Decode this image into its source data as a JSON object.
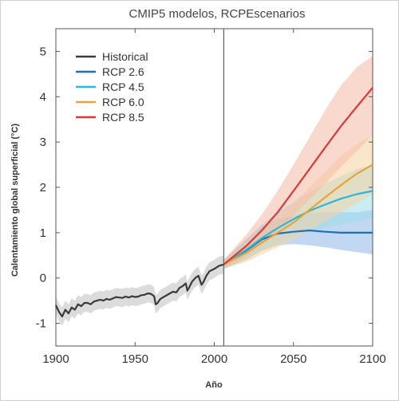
{
  "chart_data": {
    "type": "line",
    "title": "CMIP5 modelos, RCPEscenarios",
    "xlabel": "Año",
    "ylabel": "Calentamiento global superficial (°C)",
    "xlim": [
      1900,
      2100
    ],
    "ylim": [
      -1.5,
      5.5
    ],
    "x_ticks": [
      1900,
      1950,
      2000,
      2050,
      2100
    ],
    "y_ticks": [
      -1,
      0,
      1,
      2,
      3,
      4,
      5
    ],
    "divider_x": 2006,
    "legend_position": "top-left",
    "series": [
      {
        "name": "Historical",
        "color": "#3a3a3a",
        "band_color": "#bfbfbf",
        "points": [
          [
            1900,
            -0.6
          ],
          [
            1902,
            -0.75
          ],
          [
            1904,
            -0.85
          ],
          [
            1906,
            -0.7
          ],
          [
            1908,
            -0.78
          ],
          [
            1910,
            -0.65
          ],
          [
            1912,
            -0.7
          ],
          [
            1914,
            -0.58
          ],
          [
            1916,
            -0.62
          ],
          [
            1918,
            -0.55
          ],
          [
            1920,
            -0.55
          ],
          [
            1922,
            -0.58
          ],
          [
            1924,
            -0.52
          ],
          [
            1926,
            -0.5
          ],
          [
            1928,
            -0.48
          ],
          [
            1930,
            -0.5
          ],
          [
            1932,
            -0.46
          ],
          [
            1934,
            -0.48
          ],
          [
            1936,
            -0.45
          ],
          [
            1938,
            -0.42
          ],
          [
            1940,
            -0.43
          ],
          [
            1942,
            -0.44
          ],
          [
            1944,
            -0.41
          ],
          [
            1946,
            -0.43
          ],
          [
            1948,
            -0.4
          ],
          [
            1950,
            -0.42
          ],
          [
            1952,
            -0.41
          ],
          [
            1954,
            -0.38
          ],
          [
            1956,
            -0.37
          ],
          [
            1958,
            -0.34
          ],
          [
            1960,
            -0.35
          ],
          [
            1962,
            -0.4
          ],
          [
            1963,
            -0.58
          ],
          [
            1964,
            -0.56
          ],
          [
            1966,
            -0.46
          ],
          [
            1968,
            -0.42
          ],
          [
            1970,
            -0.38
          ],
          [
            1972,
            -0.34
          ],
          [
            1974,
            -0.3
          ],
          [
            1976,
            -0.32
          ],
          [
            1978,
            -0.22
          ],
          [
            1980,
            -0.18
          ],
          [
            1982,
            -0.12
          ],
          [
            1983,
            -0.28
          ],
          [
            1984,
            -0.22
          ],
          [
            1986,
            -0.08
          ],
          [
            1988,
            0.0
          ],
          [
            1990,
            0.05
          ],
          [
            1991,
            -0.05
          ],
          [
            1992,
            -0.15
          ],
          [
            1993,
            -0.1
          ],
          [
            1995,
            0.05
          ],
          [
            1997,
            0.15
          ],
          [
            2000,
            0.2
          ],
          [
            2003,
            0.27
          ],
          [
            2006,
            0.3
          ]
        ],
        "band_half_width": 0.2
      },
      {
        "name": "RCP 2.6",
        "color": "#1f6fbf",
        "band_color": "#8fb6e8",
        "points": [
          [
            2006,
            0.3
          ],
          [
            2020,
            0.6
          ],
          [
            2030,
            0.85
          ],
          [
            2040,
            0.98
          ],
          [
            2050,
            1.02
          ],
          [
            2060,
            1.05
          ],
          [
            2070,
            1.02
          ],
          [
            2080,
            1.0
          ],
          [
            2090,
            1.0
          ],
          [
            2100,
            1.0
          ]
        ],
        "band_upper": [
          [
            2006,
            0.4
          ],
          [
            2020,
            0.85
          ],
          [
            2030,
            1.15
          ],
          [
            2040,
            1.3
          ],
          [
            2050,
            1.38
          ],
          [
            2060,
            1.45
          ],
          [
            2070,
            1.45
          ],
          [
            2080,
            1.45
          ],
          [
            2090,
            1.45
          ],
          [
            2100,
            1.5
          ]
        ],
        "band_lower": [
          [
            2006,
            0.2
          ],
          [
            2020,
            0.4
          ],
          [
            2030,
            0.6
          ],
          [
            2040,
            0.72
          ],
          [
            2050,
            0.75
          ],
          [
            2060,
            0.72
          ],
          [
            2070,
            0.68
          ],
          [
            2080,
            0.62
          ],
          [
            2090,
            0.57
          ],
          [
            2100,
            0.52
          ]
        ]
      },
      {
        "name": "RCP 4.5",
        "color": "#2bb7d6",
        "band_color": "#9fdcea",
        "points": [
          [
            2006,
            0.3
          ],
          [
            2020,
            0.62
          ],
          [
            2030,
            0.88
          ],
          [
            2040,
            1.1
          ],
          [
            2050,
            1.3
          ],
          [
            2060,
            1.48
          ],
          [
            2070,
            1.62
          ],
          [
            2080,
            1.75
          ],
          [
            2090,
            1.85
          ],
          [
            2100,
            1.92
          ]
        ],
        "band_upper": [
          [
            2006,
            0.4
          ],
          [
            2020,
            0.85
          ],
          [
            2030,
            1.18
          ],
          [
            2040,
            1.45
          ],
          [
            2050,
            1.68
          ],
          [
            2060,
            1.9
          ],
          [
            2070,
            2.08
          ],
          [
            2080,
            2.25
          ],
          [
            2090,
            2.4
          ],
          [
            2100,
            2.5
          ]
        ],
        "band_lower": [
          [
            2006,
            0.2
          ],
          [
            2020,
            0.42
          ],
          [
            2030,
            0.62
          ],
          [
            2040,
            0.78
          ],
          [
            2050,
            0.92
          ],
          [
            2060,
            1.02
          ],
          [
            2070,
            1.1
          ],
          [
            2080,
            1.18
          ],
          [
            2090,
            1.25
          ],
          [
            2100,
            1.32
          ]
        ]
      },
      {
        "name": "RCP 6.0",
        "color": "#e8a33a",
        "band_color": "#f5d3a0",
        "points": [
          [
            2006,
            0.3
          ],
          [
            2020,
            0.55
          ],
          [
            2030,
            0.78
          ],
          [
            2040,
            1.0
          ],
          [
            2050,
            1.22
          ],
          [
            2060,
            1.5
          ],
          [
            2070,
            1.78
          ],
          [
            2080,
            2.05
          ],
          [
            2090,
            2.3
          ],
          [
            2100,
            2.5
          ]
        ],
        "band_upper": [
          [
            2006,
            0.4
          ],
          [
            2020,
            0.78
          ],
          [
            2030,
            1.08
          ],
          [
            2040,
            1.35
          ],
          [
            2050,
            1.65
          ],
          [
            2060,
            2.0
          ],
          [
            2070,
            2.35
          ],
          [
            2080,
            2.7
          ],
          [
            2090,
            2.95
          ],
          [
            2100,
            3.15
          ]
        ],
        "band_lower": [
          [
            2006,
            0.2
          ],
          [
            2020,
            0.35
          ],
          [
            2030,
            0.52
          ],
          [
            2040,
            0.68
          ],
          [
            2050,
            0.85
          ],
          [
            2060,
            1.05
          ],
          [
            2070,
            1.25
          ],
          [
            2080,
            1.45
          ],
          [
            2090,
            1.65
          ],
          [
            2100,
            1.85
          ]
        ]
      },
      {
        "name": "RCP 8.5",
        "color": "#d83a3a",
        "band_color": "#f4b9a6",
        "points": [
          [
            2006,
            0.3
          ],
          [
            2020,
            0.7
          ],
          [
            2030,
            1.05
          ],
          [
            2040,
            1.45
          ],
          [
            2050,
            1.92
          ],
          [
            2060,
            2.4
          ],
          [
            2070,
            2.88
          ],
          [
            2080,
            3.35
          ],
          [
            2090,
            3.78
          ],
          [
            2100,
            4.2
          ]
        ],
        "band_upper": [
          [
            2006,
            0.4
          ],
          [
            2020,
            0.95
          ],
          [
            2030,
            1.4
          ],
          [
            2040,
            1.92
          ],
          [
            2050,
            2.5
          ],
          [
            2060,
            3.1
          ],
          [
            2070,
            3.7
          ],
          [
            2080,
            4.25
          ],
          [
            2090,
            4.65
          ],
          [
            2100,
            4.9
          ]
        ],
        "band_lower": [
          [
            2006,
            0.2
          ],
          [
            2020,
            0.48
          ],
          [
            2030,
            0.75
          ],
          [
            2040,
            1.05
          ],
          [
            2050,
            1.38
          ],
          [
            2060,
            1.72
          ],
          [
            2070,
            2.08
          ],
          [
            2080,
            2.45
          ],
          [
            2090,
            2.8
          ],
          [
            2100,
            3.15
          ]
        ]
      }
    ]
  }
}
